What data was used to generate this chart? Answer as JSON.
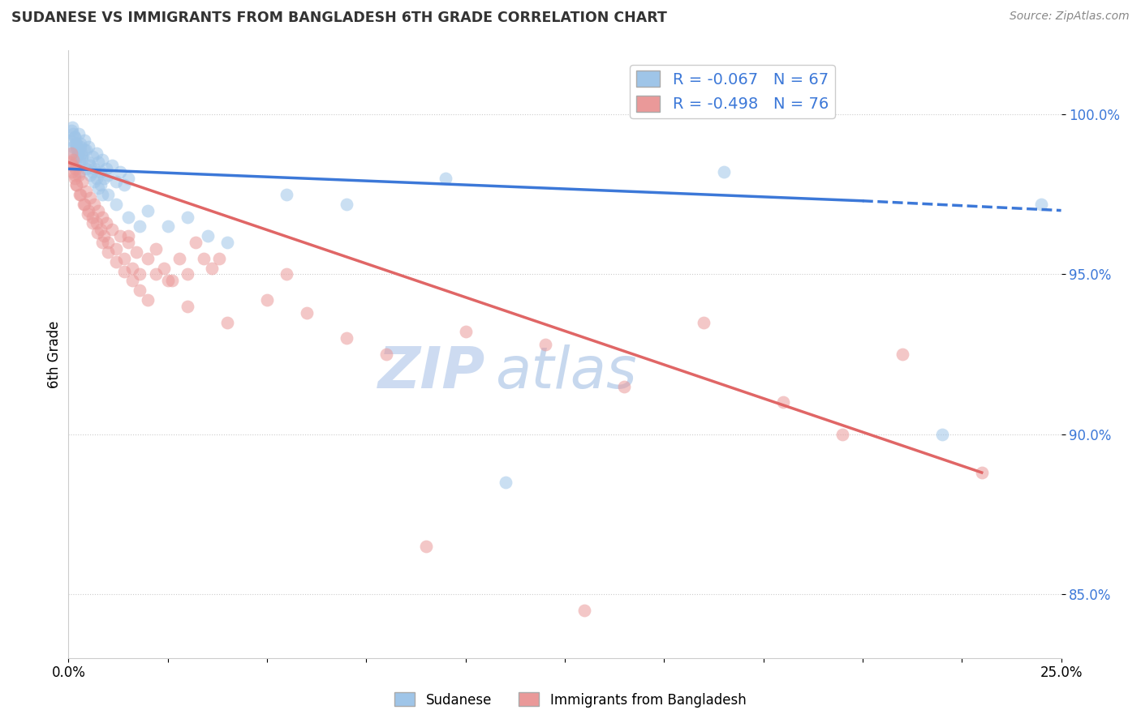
{
  "title": "SUDANESE VS IMMIGRANTS FROM BANGLADESH 6TH GRADE CORRELATION CHART",
  "source": "Source: ZipAtlas.com",
  "ylabel": "6th Grade",
  "xlim": [
    0.0,
    25.0
  ],
  "ylim": [
    83.0,
    102.0
  ],
  "yticks": [
    85.0,
    90.0,
    95.0,
    100.0
  ],
  "ytick_labels": [
    "85.0%",
    "90.0%",
    "95.0%",
    "100.0%"
  ],
  "xtick_positions": [
    0,
    2.5,
    5,
    7.5,
    10,
    12.5,
    15,
    17.5,
    20,
    22.5,
    25
  ],
  "blue_R": -0.067,
  "blue_N": 67,
  "pink_R": -0.498,
  "pink_N": 76,
  "blue_color": "#9fc5e8",
  "pink_color": "#ea9999",
  "blue_line_color": "#3c78d8",
  "pink_line_color": "#e06666",
  "background_color": "#ffffff",
  "legend_label_blue": "Sudanese",
  "legend_label_pink": "Immigrants from Bangladesh",
  "blue_line_x0": 0.0,
  "blue_line_y0": 98.3,
  "blue_line_x1": 25.0,
  "blue_line_y1": 97.0,
  "pink_line_x0": 0.0,
  "pink_line_y0": 98.5,
  "pink_line_x1": 23.0,
  "pink_line_y1": 88.8,
  "blue_scatter_x": [
    0.05,
    0.08,
    0.1,
    0.12,
    0.15,
    0.18,
    0.2,
    0.22,
    0.25,
    0.28,
    0.3,
    0.35,
    0.4,
    0.45,
    0.5,
    0.55,
    0.6,
    0.65,
    0.7,
    0.75,
    0.8,
    0.85,
    0.9,
    0.95,
    1.0,
    1.1,
    1.2,
    1.3,
    1.4,
    1.5,
    0.1,
    0.15,
    0.2,
    0.25,
    0.3,
    0.35,
    0.4,
    0.5,
    0.6,
    0.7,
    0.8,
    1.0,
    1.2,
    1.5,
    1.8,
    2.0,
    2.5,
    3.0,
    3.5,
    4.0,
    0.12,
    0.18,
    0.22,
    0.28,
    0.32,
    0.45,
    0.55,
    0.65,
    0.75,
    0.85,
    5.5,
    7.0,
    9.5,
    16.5,
    22.0,
    24.5,
    11.0
  ],
  "blue_scatter_y": [
    99.2,
    99.5,
    98.8,
    99.0,
    99.3,
    98.5,
    99.1,
    98.7,
    99.4,
    98.2,
    99.0,
    98.6,
    99.2,
    98.9,
    99.0,
    98.4,
    98.7,
    98.3,
    98.8,
    98.5,
    98.2,
    98.6,
    98.0,
    98.3,
    98.1,
    98.4,
    97.9,
    98.2,
    97.8,
    98.0,
    99.6,
    99.3,
    99.0,
    98.8,
    99.1,
    98.7,
    98.9,
    98.5,
    98.2,
    98.0,
    97.8,
    97.5,
    97.2,
    96.8,
    96.5,
    97.0,
    96.5,
    96.8,
    96.2,
    96.0,
    99.4,
    99.1,
    98.9,
    98.6,
    98.8,
    98.3,
    98.1,
    97.9,
    97.7,
    97.5,
    97.5,
    97.2,
    98.0,
    98.2,
    90.0,
    97.2,
    88.5
  ],
  "pink_scatter_x": [
    0.05,
    0.08,
    0.1,
    0.12,
    0.15,
    0.18,
    0.2,
    0.25,
    0.3,
    0.35,
    0.4,
    0.45,
    0.5,
    0.55,
    0.6,
    0.65,
    0.7,
    0.75,
    0.8,
    0.85,
    0.9,
    0.95,
    1.0,
    1.1,
    1.2,
    1.3,
    1.4,
    1.5,
    1.6,
    1.7,
    1.8,
    2.0,
    2.2,
    2.4,
    2.6,
    2.8,
    3.0,
    3.2,
    3.4,
    3.6,
    0.1,
    0.15,
    0.2,
    0.28,
    0.38,
    0.48,
    0.6,
    0.72,
    0.85,
    1.0,
    1.2,
    1.4,
    1.6,
    1.8,
    2.0,
    2.5,
    3.0,
    4.0,
    5.0,
    6.0,
    7.0,
    8.0,
    10.0,
    12.0,
    14.0,
    16.0,
    18.0,
    19.5,
    21.0,
    23.0,
    1.5,
    2.2,
    3.8,
    5.5,
    9.0,
    13.0
  ],
  "pink_scatter_y": [
    98.5,
    98.8,
    98.2,
    98.6,
    98.0,
    98.3,
    97.8,
    98.1,
    97.5,
    97.9,
    97.2,
    97.6,
    97.0,
    97.4,
    96.8,
    97.2,
    96.6,
    97.0,
    96.4,
    96.8,
    96.2,
    96.6,
    96.0,
    96.4,
    95.8,
    96.2,
    95.5,
    96.0,
    95.2,
    95.7,
    95.0,
    95.5,
    95.0,
    95.2,
    94.8,
    95.5,
    95.0,
    96.0,
    95.5,
    95.2,
    98.4,
    98.1,
    97.8,
    97.5,
    97.2,
    96.9,
    96.6,
    96.3,
    96.0,
    95.7,
    95.4,
    95.1,
    94.8,
    94.5,
    94.2,
    94.8,
    94.0,
    93.5,
    94.2,
    93.8,
    93.0,
    92.5,
    93.2,
    92.8,
    91.5,
    93.5,
    91.0,
    90.0,
    92.5,
    88.8,
    96.2,
    95.8,
    95.5,
    95.0,
    86.5,
    84.5
  ]
}
